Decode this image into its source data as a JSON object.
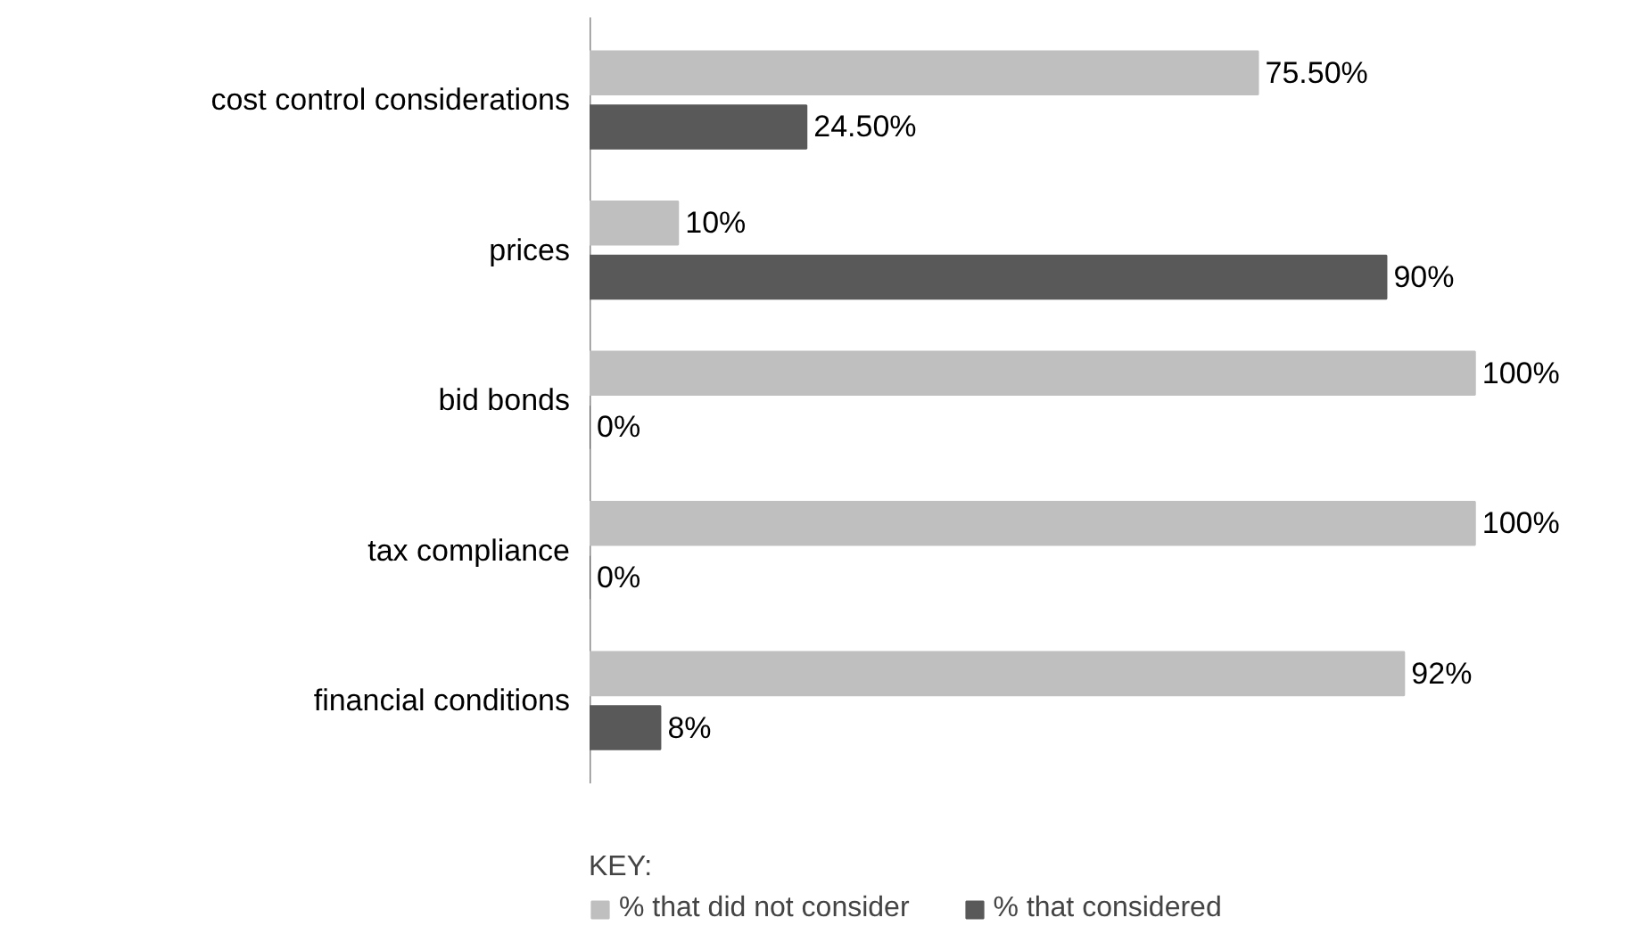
{
  "chart_data": {
    "type": "bar",
    "orientation": "horizontal",
    "legend_title": "KEY:",
    "legend": "bottom",
    "categories": [
      "cost control considerations",
      "prices",
      "bid bonds",
      "tax compliance",
      "financial conditions"
    ],
    "series": [
      {
        "name": "% that did not consider",
        "color": "#bfbfbf",
        "values": [
          75.5,
          10,
          100,
          100,
          92
        ],
        "value_labels": [
          "75.50%",
          "10%",
          "100%",
          "100%",
          "92%"
        ]
      },
      {
        "name": "% that considered",
        "color": "#595959",
        "values": [
          24.5,
          90,
          0,
          0,
          8
        ],
        "value_labels": [
          "24.50%",
          "90%",
          "0%",
          "0%",
          "8%"
        ]
      }
    ]
  }
}
